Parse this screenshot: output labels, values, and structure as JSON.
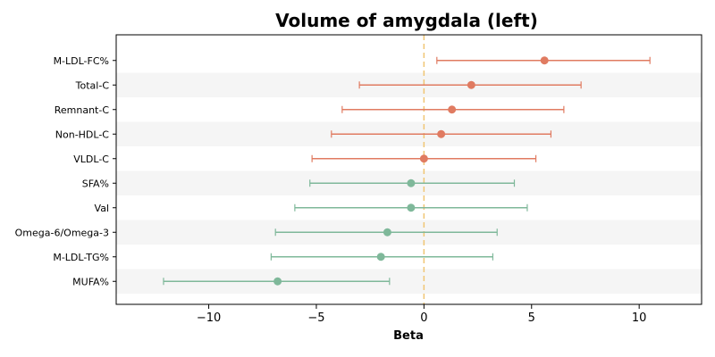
{
  "chart_data": {
    "type": "forest",
    "title": "Volume of amygdala (left)",
    "xlabel": "Beta",
    "ylabel": "",
    "xlim": [
      -14.3,
      12.9
    ],
    "x_ticks": [
      -10,
      -5,
      0,
      5,
      10
    ],
    "x_tick_labels": [
      "−10",
      "−5",
      "0",
      "5",
      "10"
    ],
    "reference_line": 0,
    "grid": false,
    "colors": {
      "positive": "#e07b61",
      "negative": "#7fb89a",
      "reference": "#f0c674",
      "band": "#f5f5f5"
    },
    "points": [
      {
        "label": "M-LDL-FC%",
        "beta": 5.6,
        "lower": 0.6,
        "upper": 10.5,
        "group": "positive"
      },
      {
        "label": "Total-C",
        "beta": 2.2,
        "lower": -3.0,
        "upper": 7.3,
        "group": "positive"
      },
      {
        "label": "Remnant-C",
        "beta": 1.3,
        "lower": -3.8,
        "upper": 6.5,
        "group": "positive"
      },
      {
        "label": "Non-HDL-C",
        "beta": 0.8,
        "lower": -4.3,
        "upper": 5.9,
        "group": "positive"
      },
      {
        "label": "VLDL-C",
        "beta": 0.0,
        "lower": -5.2,
        "upper": 5.2,
        "group": "positive"
      },
      {
        "label": "SFA%",
        "beta": -0.6,
        "lower": -5.3,
        "upper": 4.2,
        "group": "negative"
      },
      {
        "label": "Val",
        "beta": -0.6,
        "lower": -6.0,
        "upper": 4.8,
        "group": "negative"
      },
      {
        "label": "Omega-6/Omega-3",
        "beta": -1.7,
        "lower": -6.9,
        "upper": 3.4,
        "group": "negative"
      },
      {
        "label": "M-LDL-TG%",
        "beta": -2.0,
        "lower": -7.1,
        "upper": 3.2,
        "group": "negative"
      },
      {
        "label": "MUFA%",
        "beta": -6.8,
        "lower": -12.1,
        "upper": -1.6,
        "group": "negative"
      }
    ]
  }
}
